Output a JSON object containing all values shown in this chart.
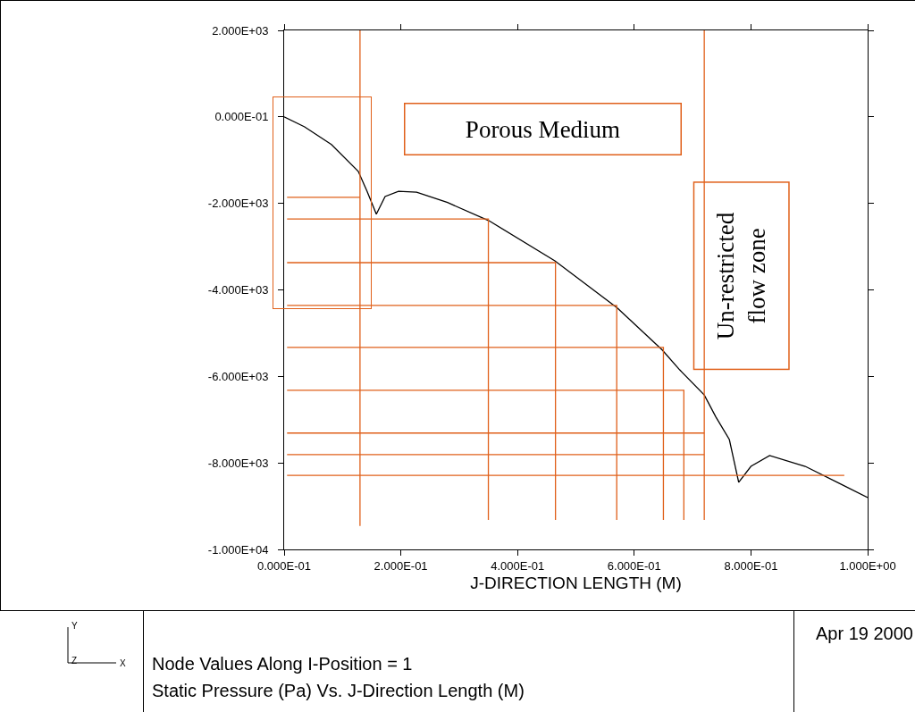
{
  "chart_data": {
    "type": "line",
    "title": "Node Values Along I-Position =  1",
    "subtitle": "Static Pressure (Pa) Vs. J-Direction Length (M)",
    "xlabel": "J-DIRECTION LENGTH (M)",
    "annotations": [
      "Porous Medium",
      "Un-restricted\nflow zone",
      "Apr 19 2000",
      "Y",
      "Z",
      "X"
    ],
    "xlim": [
      0,
      1
    ],
    "xticks": [
      {
        "value": 0,
        "label": "0.000E-01"
      },
      {
        "value": 0.2,
        "label": "2.000E-01"
      },
      {
        "value": 0.4,
        "label": "4.000E-01"
      },
      {
        "value": 0.6,
        "label": "6.000E-01"
      },
      {
        "value": 0.8,
        "label": "8.000E-01"
      },
      {
        "value": 1,
        "label": "1.000E+00"
      }
    ],
    "ylim": [
      -10000,
      2000
    ],
    "yticks": [
      {
        "value": -10000,
        "label": "-1.000E+04"
      },
      {
        "value": -8000,
        "label": "-8.000E+03"
      },
      {
        "value": -6000,
        "label": "-6.000E+03"
      },
      {
        "value": -4000,
        "label": "-4.000E+03"
      },
      {
        "value": -2000,
        "label": "-2.000E+03"
      },
      {
        "value": 0,
        "label": "0.000E-01"
      },
      {
        "value": 2000,
        "label": "2.000E+03"
      }
    ],
    "grid": false,
    "series": [
      {
        "color": "#000000",
        "x": [
          0,
          0.035,
          0.081,
          0.127,
          0.142,
          0.158,
          0.173,
          0.196,
          0.227,
          0.28,
          0.351,
          0.464,
          0.571,
          0.648,
          0.678,
          0.72,
          0.74,
          0.763,
          0.779,
          0.8,
          0.832,
          0.893,
          0.954,
          1.0
        ],
        "values": [
          0,
          -230,
          -640,
          -1260,
          -1720,
          -2250,
          -1840,
          -1720,
          -1740,
          -1980,
          -2400,
          -3330,
          -4420,
          -5390,
          -5850,
          -6430,
          -6940,
          -7460,
          -8450,
          -8080,
          -7830,
          -8080,
          -8490,
          -8800
        ]
      },
      {
        "color": "#e0601a",
        "x": [
          0.005,
          0.13
        ],
        "values": [
          -1860,
          -1860
        ]
      },
      {
        "color": "#e0601a",
        "x": [
          0.13,
          0.13
        ],
        "values": [
          2000,
          -9460
        ]
      },
      {
        "color": "#e0601a",
        "x": [
          0.005,
          0.35,
          0.35
        ],
        "values": [
          -2360,
          -2360,
          -9320
        ]
      },
      {
        "color": "#e0601a",
        "x": [
          0.005,
          0.465,
          0.465
        ],
        "values": [
          -3370,
          -3370,
          -9320
        ]
      },
      {
        "color": "#e0601a",
        "x": [
          0.005,
          0.57,
          0.57
        ],
        "values": [
          -4360,
          -4360,
          -9320
        ]
      },
      {
        "color": "#e0601a",
        "x": [
          0.005,
          0.65,
          0.65
        ],
        "values": [
          -5330,
          -5330,
          -9320
        ]
      },
      {
        "color": "#e0601a",
        "x": [
          0.005,
          0.685,
          0.685
        ],
        "values": [
          -6320,
          -6320,
          -9320
        ]
      },
      {
        "color": "#e0601a",
        "x": [
          0.005,
          0.72
        ],
        "values": [
          -7310,
          -7310
        ]
      },
      {
        "color": "#e0601a",
        "x": [
          0.005,
          0.72
        ],
        "values": [
          -7810,
          -7810
        ]
      },
      {
        "color": "#e0601a",
        "x": [
          0.72,
          0.72
        ],
        "values": [
          2000,
          -9320
        ]
      },
      {
        "color": "#e0601a",
        "x": [
          0.005,
          0.96
        ],
        "values": [
          -8290,
          -8290
        ]
      }
    ]
  }
}
